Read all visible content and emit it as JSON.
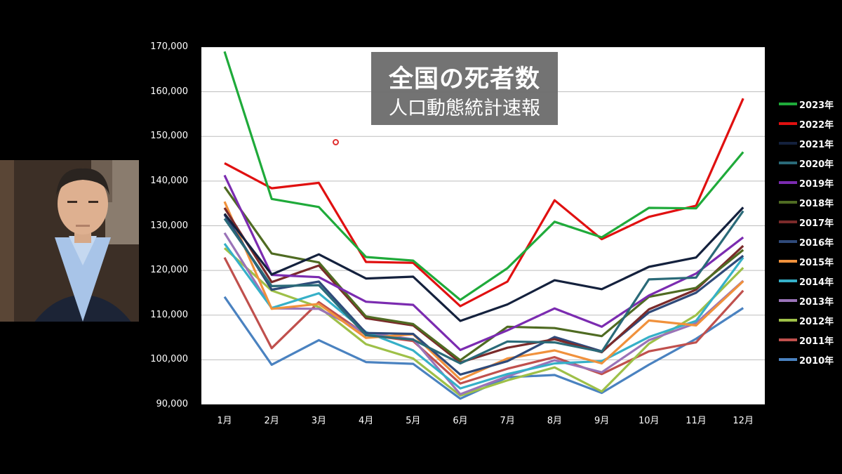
{
  "title": {
    "main": "全国の死者数",
    "sub": "人口動態統計速報"
  },
  "presenter": {
    "icon": "person-webcam-icon"
  },
  "chart_data": {
    "type": "line",
    "categories": [
      "1月",
      "2月",
      "3月",
      "4月",
      "5月",
      "6月",
      "7月",
      "8月",
      "9月",
      "10月",
      "11月",
      "12月"
    ],
    "ylim": [
      90000,
      170000
    ],
    "yticks": [
      90000,
      100000,
      110000,
      120000,
      130000,
      140000,
      150000,
      160000,
      170000
    ],
    "ytick_labels": [
      "90,000",
      "100,000",
      "110,000",
      "120,000",
      "130,000",
      "140,000",
      "150,000",
      "160,000",
      "170,000"
    ],
    "grid": true,
    "legend_position": "right",
    "series": [
      {
        "name": "2023年",
        "color": "#1faa3a",
        "values": [
          169000,
          136000,
          134200,
          123000,
          122200,
          113400,
          120500,
          130900,
          127400,
          134000,
          133900,
          146500
        ]
      },
      {
        "name": "2022年",
        "color": "#e01010",
        "values": [
          144000,
          138400,
          139600,
          121900,
          121700,
          112000,
          117500,
          135700,
          127000,
          132000,
          134500,
          158500
        ]
      },
      {
        "name": "2021年",
        "color": "#14213d",
        "values": [
          132700,
          119100,
          123600,
          118200,
          118600,
          108700,
          112400,
          117800,
          115800,
          120800,
          122900,
          134100
        ]
      },
      {
        "name": "2020年",
        "color": "#2a6a78",
        "values": [
          131600,
          116500,
          116700,
          105500,
          104500,
          99200,
          104100,
          103900,
          101800,
          118000,
          118400,
          133300
        ]
      },
      {
        "name": "2019年",
        "color": "#7b2bb0",
        "values": [
          141300,
          119000,
          118500,
          113000,
          112300,
          102200,
          106600,
          111500,
          107400,
          114400,
          119300,
          127400
        ]
      },
      {
        "name": "2018年",
        "color": "#4f6b22",
        "values": [
          138700,
          123800,
          121800,
          109700,
          108000,
          99900,
          107400,
          107100,
          105300,
          114100,
          116100,
          124600
        ]
      },
      {
        "name": "2017年",
        "color": "#7a2a2a",
        "values": [
          134000,
          117400,
          121100,
          109300,
          107700,
          99400,
          102700,
          104600,
          101700,
          111300,
          115700,
          125500
        ]
      },
      {
        "name": "2016年",
        "color": "#2f4a7a",
        "values": [
          132500,
          115700,
          117500,
          106000,
          105800,
          96700,
          99700,
          105100,
          101900,
          110600,
          115000,
          123300
        ]
      },
      {
        "name": "2015年",
        "color": "#f0913c",
        "values": [
          135400,
          111400,
          112500,
          104900,
          105700,
          95600,
          100300,
          102100,
          99200,
          108800,
          107700,
          117600
        ]
      },
      {
        "name": "2014年",
        "color": "#36b0c8",
        "values": [
          126000,
          111600,
          114900,
          106200,
          102100,
          93600,
          96800,
          99200,
          99700,
          105100,
          108700,
          122900
        ]
      },
      {
        "name": "2013年",
        "color": "#9a73b8",
        "values": [
          128400,
          111500,
          111400,
          106000,
          104600,
          92300,
          96300,
          99900,
          97200,
          104400,
          108200,
          117700
        ]
      },
      {
        "name": "2012年",
        "color": "#9ec048",
        "values": [
          125000,
          115500,
          111800,
          103500,
          100300,
          92000,
          95400,
          98300,
          92900,
          103600,
          110000,
          120600
        ]
      },
      {
        "name": "2011年",
        "color": "#c0504d",
        "values": [
          122900,
          102600,
          112900,
          105600,
          104200,
          94700,
          98000,
          100600,
          96800,
          101900,
          103900,
          115500
        ]
      },
      {
        "name": "2010年",
        "color": "#4a82c0",
        "values": [
          114100,
          98900,
          104400,
          99500,
          99100,
          91300,
          96100,
          96600,
          92600,
          98900,
          104700,
          111600
        ]
      }
    ]
  }
}
